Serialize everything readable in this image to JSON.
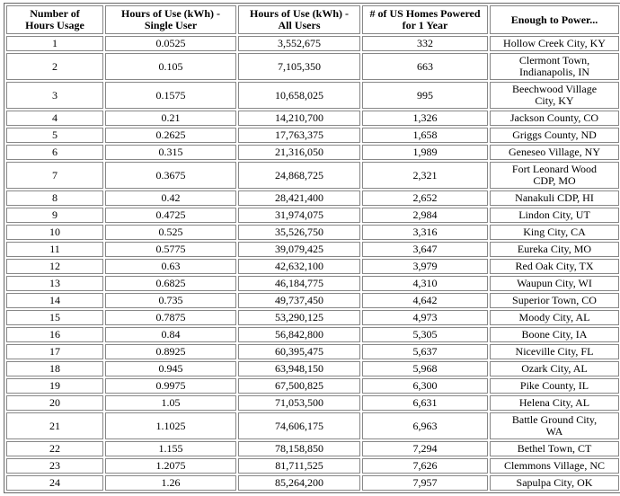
{
  "table": {
    "columns": [
      "Number of\nHours Usage",
      "Hours of Use (kWh) -\nSingle User",
      "Hours of Use (kWh) -\nAll Users",
      "# of US Homes Powered\nfor 1 Year",
      "Enough to Power..."
    ],
    "rows": [
      [
        "1",
        "0.0525",
        "3,552,675",
        "332",
        "Hollow Creek City, KY"
      ],
      [
        "2",
        "0.105",
        "7,105,350",
        "663",
        "Clermont Town,\nIndianapolis, IN"
      ],
      [
        "3",
        "0.1575",
        "10,658,025",
        "995",
        "Beechwood Village\nCity, KY"
      ],
      [
        "4",
        "0.21",
        "14,210,700",
        "1,326",
        "Jackson County, CO"
      ],
      [
        "5",
        "0.2625",
        "17,763,375",
        "1,658",
        "Griggs County, ND"
      ],
      [
        "6",
        "0.315",
        "21,316,050",
        "1,989",
        "Geneseo Village, NY"
      ],
      [
        "7",
        "0.3675",
        "24,868,725",
        "2,321",
        "Fort Leonard Wood\nCDP, MO"
      ],
      [
        "8",
        "0.42",
        "28,421,400",
        "2,652",
        "Nanakuli CDP, HI"
      ],
      [
        "9",
        "0.4725",
        "31,974,075",
        "2,984",
        "Lindon City, UT"
      ],
      [
        "10",
        "0.525",
        "35,526,750",
        "3,316",
        "King City, CA"
      ],
      [
        "11",
        "0.5775",
        "39,079,425",
        "3,647",
        "Eureka City, MO"
      ],
      [
        "12",
        "0.63",
        "42,632,100",
        "3,979",
        "Red Oak City, TX"
      ],
      [
        "13",
        "0.6825",
        "46,184,775",
        "4,310",
        "Waupun City, WI"
      ],
      [
        "14",
        "0.735",
        "49,737,450",
        "4,642",
        "Superior Town, CO"
      ],
      [
        "15",
        "0.7875",
        "53,290,125",
        "4,973",
        "Moody City, AL"
      ],
      [
        "16",
        "0.84",
        "56,842,800",
        "5,305",
        "Boone City, IA"
      ],
      [
        "17",
        "0.8925",
        "60,395,475",
        "5,637",
        "Niceville City, FL"
      ],
      [
        "18",
        "0.945",
        "63,948,150",
        "5,968",
        "Ozark City, AL"
      ],
      [
        "19",
        "0.9975",
        "67,500,825",
        "6,300",
        "Pike County, IL"
      ],
      [
        "20",
        "1.05",
        "71,053,500",
        "6,631",
        "Helena City, AL"
      ],
      [
        "21",
        "1.1025",
        "74,606,175",
        "6,963",
        "Battle Ground City,\nWA"
      ],
      [
        "22",
        "1.155",
        "78,158,850",
        "7,294",
        "Bethel Town, CT"
      ],
      [
        "23",
        "1.2075",
        "81,711,525",
        "7,626",
        "Clemmons Village, NC"
      ],
      [
        "24",
        "1.26",
        "85,264,200",
        "7,957",
        "Sapulpa City, OK"
      ]
    ]
  },
  "colors": {
    "table_outer_border": "#666666",
    "cell_border": "#878787",
    "text": "#000000",
    "background": "#ffffff"
  }
}
